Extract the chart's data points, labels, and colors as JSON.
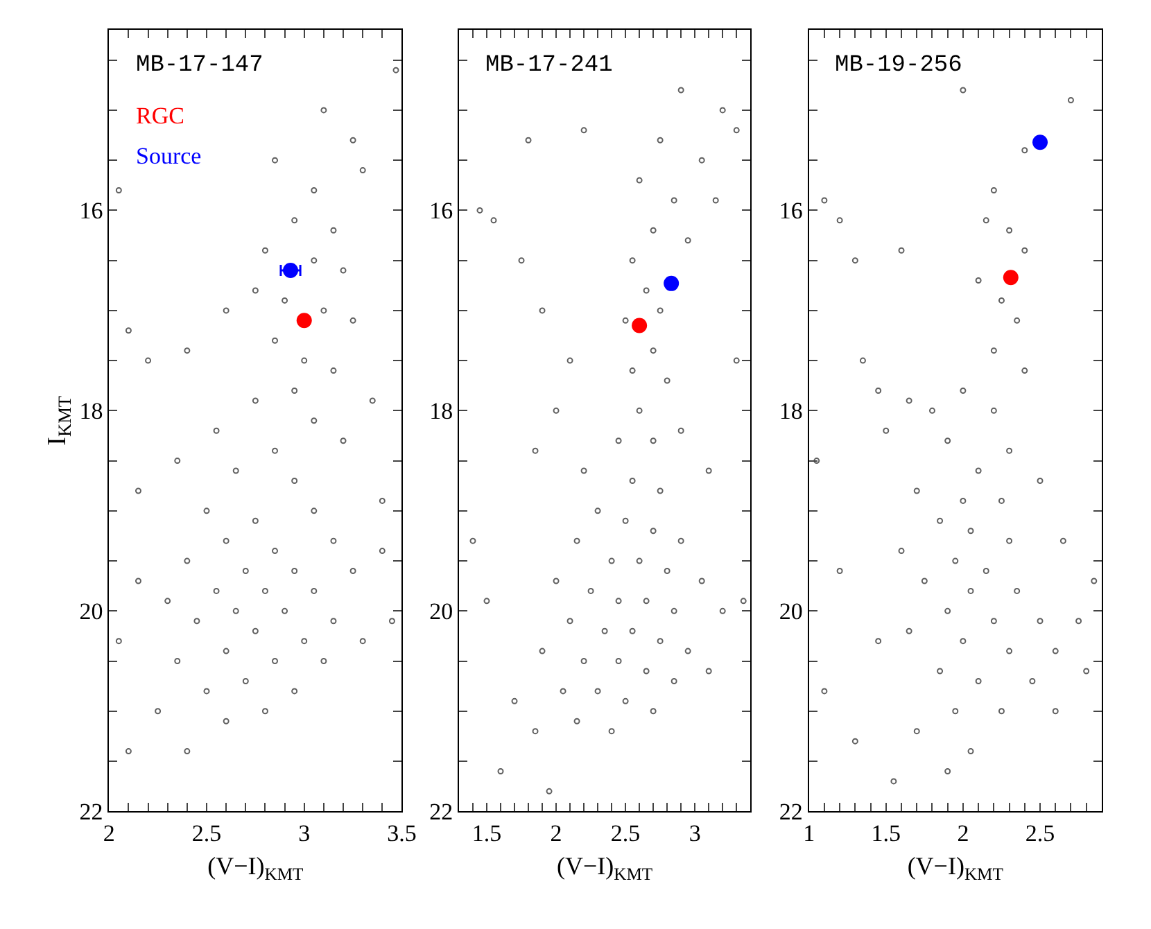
{
  "chart_data": [
    {
      "type": "scatter",
      "title": "MB-17-147",
      "xlabel": "(V−I)$_{KMT}$",
      "ylabel": "I$_{KMT}$",
      "marker": "circle",
      "legend": "top left",
      "xlim": [
        2,
        3.5
      ],
      "ylim": [
        22,
        14.2
      ],
      "xticks": [
        2,
        {
          "value": 2.1,
          "label": null
        },
        {
          "value": 2.2,
          "label": null
        },
        {
          "value": 2.3,
          "label": null
        },
        {
          "value": 2.4,
          "label": null
        },
        2.5,
        {
          "value": 2.6,
          "label": null
        },
        {
          "value": 2.7,
          "label": null
        },
        {
          "value": 2.8,
          "label": null
        },
        {
          "value": 2.9,
          "label": null
        },
        3,
        {
          "value": 3.1,
          "label": null
        },
        {
          "value": 3.2,
          "label": null
        },
        {
          "value": 3.3,
          "label": null
        },
        {
          "value": 3.4,
          "label": null
        },
        3.5
      ],
      "yticks": [
        {
          "value": 14.5,
          "label": null
        },
        {
          "value": 15,
          "label": null
        },
        {
          "value": 15.5,
          "label": null
        },
        16,
        {
          "value": 16.5,
          "label": null
        },
        {
          "value": 17,
          "label": null
        },
        {
          "value": 17.5,
          "label": null
        },
        18,
        {
          "value": 18.5,
          "label": null
        },
        {
          "value": 19,
          "label": null
        },
        {
          "value": 19.5,
          "label": null
        },
        20,
        {
          "value": 20.5,
          "label": null
        },
        {
          "value": 21,
          "label": null
        },
        {
          "value": 21.5,
          "label": null
        },
        22
      ],
      "series": [
        {
          "color": "#606060",
          "x": [
            3.47,
            3.1,
            3.25,
            2.85,
            3.05,
            3.3,
            2.95,
            3.15,
            2.8,
            3.05,
            3.2,
            2.75,
            2.9,
            3.1,
            3.25,
            2.6,
            2.85,
            3.0,
            3.15,
            2.4,
            2.2,
            2.1,
            2.95,
            2.75,
            3.05,
            2.55,
            2.85,
            3.2,
            2.35,
            2.65,
            2.95,
            2.15,
            3.4,
            2.5,
            2.75,
            3.05,
            2.6,
            2.85,
            3.15,
            2.4,
            2.7,
            2.95,
            3.25,
            2.55,
            2.8,
            3.05,
            2.3,
            2.65,
            2.9,
            3.15,
            2.45,
            2.75,
            3.0,
            3.3,
            2.6,
            2.85,
            3.1,
            2.35,
            2.7,
            2.95,
            2.5,
            2.8,
            2.6,
            2.25,
            3.45,
            2.05,
            2.1,
            2.4,
            2.15,
            3.4,
            3.35,
            2.05
          ],
          "values": [
            14.6,
            15.0,
            15.3,
            15.5,
            15.8,
            15.6,
            16.1,
            16.2,
            16.4,
            16.5,
            16.6,
            16.8,
            16.9,
            17.0,
            17.1,
            17.0,
            17.3,
            17.5,
            17.6,
            17.4,
            17.5,
            17.2,
            17.8,
            17.9,
            18.1,
            18.2,
            18.4,
            18.3,
            18.5,
            18.6,
            18.7,
            18.8,
            18.9,
            19.0,
            19.1,
            19.0,
            19.3,
            19.4,
            19.3,
            19.5,
            19.6,
            19.6,
            19.6,
            19.8,
            19.8,
            19.8,
            19.9,
            20.0,
            20.0,
            20.1,
            20.1,
            20.2,
            20.3,
            20.3,
            20.4,
            20.5,
            20.5,
            20.5,
            20.7,
            20.8,
            20.8,
            21.0,
            21.1,
            21.0,
            20.1,
            20.3,
            21.4,
            21.4,
            19.7,
            19.4,
            17.9,
            15.8
          ]
        },
        {
          "name": "RGC",
          "color": "#ff0000",
          "x": [
            3.0
          ],
          "values": [
            17.1
          ]
        },
        {
          "name": "Source",
          "color": "#0000ff",
          "x": [
            2.93
          ],
          "values": [
            16.6
          ],
          "xerrors": [
            0.05
          ]
        }
      ]
    },
    {
      "type": "scatter",
      "title": "MB-17-241",
      "xlabel": "(V−I)$_{KMT}$",
      "marker": "circle",
      "xlim": [
        1.3,
        3.4
      ],
      "ylim": [
        22,
        14.2
      ],
      "xticks": [
        {
          "value": 1.4,
          "label": null
        },
        1.5,
        {
          "value": 1.6,
          "label": null
        },
        {
          "value": 1.7,
          "label": null
        },
        {
          "value": 1.8,
          "label": null
        },
        {
          "value": 1.9,
          "label": null
        },
        2,
        {
          "value": 2.1,
          "label": null
        },
        {
          "value": 2.2,
          "label": null
        },
        {
          "value": 2.3,
          "label": null
        },
        {
          "value": 2.4,
          "label": null
        },
        2.5,
        {
          "value": 2.6,
          "label": null
        },
        {
          "value": 2.7,
          "label": null
        },
        {
          "value": 2.8,
          "label": null
        },
        {
          "value": 2.9,
          "label": null
        },
        3,
        {
          "value": 3.1,
          "label": null
        },
        {
          "value": 3.2,
          "label": null
        },
        {
          "value": 3.3,
          "label": null
        }
      ],
      "yticks": [
        {
          "value": 14.5,
          "label": null
        },
        {
          "value": 15,
          "label": null
        },
        {
          "value": 15.5,
          "label": null
        },
        16,
        {
          "value": 16.5,
          "label": null
        },
        {
          "value": 17,
          "label": null
        },
        {
          "value": 17.5,
          "label": null
        },
        18,
        {
          "value": 18.5,
          "label": null
        },
        {
          "value": 19,
          "label": null
        },
        {
          "value": 19.5,
          "label": null
        },
        20,
        {
          "value": 20.5,
          "label": null
        },
        {
          "value": 21,
          "label": null
        },
        {
          "value": 21.5,
          "label": null
        },
        22
      ],
      "series": [
        {
          "color": "#606060",
          "x": [
            2.9,
            3.2,
            2.75,
            3.05,
            3.3,
            2.6,
            2.85,
            3.15,
            2.7,
            2.95,
            2.55,
            2.65,
            2.75,
            2.5,
            2.7,
            2.55,
            2.8,
            2.6,
            2.7,
            2.45,
            2.9,
            2.1,
            1.9,
            1.75,
            1.55,
            2.0,
            1.85,
            2.2,
            2.55,
            2.75,
            3.1,
            2.3,
            2.5,
            2.7,
            2.9,
            2.15,
            2.4,
            2.6,
            2.8,
            3.05,
            2.0,
            2.25,
            2.45,
            2.65,
            2.85,
            3.2,
            2.1,
            2.35,
            2.55,
            2.75,
            2.95,
            1.9,
            2.2,
            2.45,
            2.65,
            2.85,
            3.1,
            2.05,
            2.3,
            2.5,
            2.7,
            2.15,
            2.4,
            1.85,
            1.7,
            1.5,
            1.4,
            1.6,
            1.95,
            3.35,
            1.45,
            3.3,
            2.2,
            1.8
          ],
          "values": [
            14.8,
            15.0,
            15.3,
            15.5,
            15.2,
            15.7,
            15.9,
            15.9,
            16.2,
            16.3,
            16.5,
            16.8,
            17.0,
            17.1,
            17.4,
            17.6,
            17.7,
            18.0,
            18.3,
            18.3,
            18.2,
            17.5,
            17.0,
            16.5,
            16.1,
            18.0,
            18.4,
            18.6,
            18.7,
            18.8,
            18.6,
            19.0,
            19.1,
            19.2,
            19.3,
            19.3,
            19.5,
            19.5,
            19.6,
            19.7,
            19.7,
            19.8,
            19.9,
            19.9,
            20.0,
            20.0,
            20.1,
            20.2,
            20.2,
            20.3,
            20.4,
            20.4,
            20.5,
            20.5,
            20.6,
            20.7,
            20.6,
            20.8,
            20.8,
            20.9,
            21.0,
            21.1,
            21.2,
            21.2,
            20.9,
            19.9,
            19.3,
            21.6,
            21.8,
            19.9,
            16.0,
            17.5,
            15.2,
            15.3
          ]
        },
        {
          "color": "#ff0000",
          "x": [
            2.6
          ],
          "values": [
            17.15
          ]
        },
        {
          "color": "#0000ff",
          "x": [
            2.83
          ],
          "values": [
            16.73
          ]
        }
      ]
    },
    {
      "type": "scatter",
      "title": "MB-19-256",
      "xlabel": "(V−I)$_{KMT}$",
      "marker": "circle",
      "xlim": [
        1,
        2.9
      ],
      "ylim": [
        22,
        14.2
      ],
      "xticks": [
        1,
        {
          "value": 1.1,
          "label": null
        },
        {
          "value": 1.2,
          "label": null
        },
        {
          "value": 1.3,
          "label": null
        },
        {
          "value": 1.4,
          "label": null
        },
        1.5,
        {
          "value": 1.6,
          "label": null
        },
        {
          "value": 1.7,
          "label": null
        },
        {
          "value": 1.8,
          "label": null
        },
        {
          "value": 1.9,
          "label": null
        },
        2,
        {
          "value": 2.1,
          "label": null
        },
        {
          "value": 2.2,
          "label": null
        },
        {
          "value": 2.3,
          "label": null
        },
        {
          "value": 2.4,
          "label": null
        },
        2.5,
        {
          "value": 2.6,
          "label": null
        },
        {
          "value": 2.7,
          "label": null
        },
        {
          "value": 2.8,
          "label": null
        }
      ],
      "yticks": [
        {
          "value": 14.5,
          "label": null
        },
        {
          "value": 15,
          "label": null
        },
        {
          "value": 15.5,
          "label": null
        },
        16,
        {
          "value": 16.5,
          "label": null
        },
        {
          "value": 17,
          "label": null
        },
        {
          "value": 17.5,
          "label": null
        },
        18,
        {
          "value": 18.5,
          "label": null
        },
        {
          "value": 19,
          "label": null
        },
        {
          "value": 19.5,
          "label": null
        },
        20,
        {
          "value": 20.5,
          "label": null
        },
        {
          "value": 21,
          "label": null
        },
        {
          "value": 21.5,
          "label": null
        },
        22
      ],
      "series": [
        {
          "color": "#606060",
          "x": [
            2.0,
            2.7,
            2.4,
            2.2,
            1.2,
            1.1,
            1.3,
            1.6,
            2.15,
            2.3,
            2.4,
            2.1,
            2.25,
            2.35,
            2.2,
            2.4,
            1.35,
            1.45,
            1.65,
            1.8,
            2.0,
            2.2,
            2.3,
            1.9,
            2.1,
            1.5,
            1.7,
            2.0,
            2.25,
            2.5,
            1.85,
            2.05,
            2.3,
            1.6,
            1.95,
            2.15,
            1.75,
            2.05,
            2.35,
            1.9,
            2.2,
            2.5,
            2.75,
            1.65,
            2.0,
            2.3,
            2.6,
            1.85,
            2.1,
            2.45,
            2.8,
            1.95,
            2.25,
            2.6,
            1.7,
            2.05,
            1.9,
            1.55,
            1.3,
            1.1,
            1.2,
            1.05,
            1.45,
            2.85,
            2.65
          ],
          "values": [
            14.8,
            14.9,
            15.4,
            15.8,
            16.1,
            15.9,
            16.5,
            16.4,
            16.1,
            16.2,
            16.4,
            16.7,
            16.9,
            17.1,
            17.4,
            17.6,
            17.5,
            17.8,
            17.9,
            18.0,
            17.8,
            18.0,
            18.4,
            18.3,
            18.6,
            18.2,
            18.8,
            18.9,
            18.9,
            18.7,
            19.1,
            19.2,
            19.3,
            19.4,
            19.5,
            19.6,
            19.7,
            19.8,
            19.8,
            20.0,
            20.1,
            20.1,
            20.1,
            20.2,
            20.3,
            20.4,
            20.4,
            20.6,
            20.7,
            20.7,
            20.6,
            21.0,
            21.0,
            21.0,
            21.2,
            21.4,
            21.6,
            21.7,
            21.3,
            20.8,
            19.6,
            18.5,
            20.3,
            19.7,
            19.3
          ]
        },
        {
          "color": "#ff0000",
          "x": [
            2.31
          ],
          "values": [
            16.67
          ]
        },
        {
          "color": "#0000ff",
          "x": [
            2.5
          ],
          "values": [
            15.32
          ]
        }
      ]
    }
  ]
}
